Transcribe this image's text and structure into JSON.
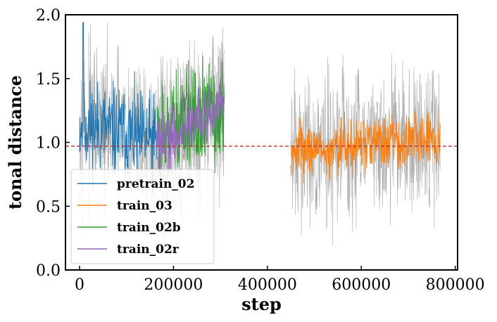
{
  "chart_data": {
    "type": "line",
    "title": "",
    "xlabel": "step",
    "ylabel": "tonal distance",
    "xlim": [
      -30000,
      805000
    ],
    "ylim": [
      0.0,
      2.0
    ],
    "xticks": [
      0,
      200000,
      400000,
      600000,
      800000
    ],
    "xtick_labels": [
      "0",
      "200000",
      "400000",
      "600000",
      "800000"
    ],
    "yticks": [
      0.0,
      0.5,
      1.0,
      1.5,
      2.0
    ],
    "ytick_labels": [
      "0.0",
      "0.5",
      "1.0",
      "1.5",
      "2.0"
    ],
    "grid": false,
    "legend_position": "lower-left",
    "reference_line": {
      "y": 0.97,
      "color": "#d62728",
      "style": "dashed"
    },
    "raw_noise_color": "#aaaaaa",
    "series": [
      {
        "name": "pretrain_02",
        "color": "#1f77b4",
        "x_range": [
          0,
          165000
        ],
        "mean": [
          1.15,
          1.0
        ],
        "noise": 0.12,
        "raw_noise": 0.2,
        "peak": {
          "x": 8000,
          "y": 1.94
        },
        "legend_order": 0
      },
      {
        "name": "train_03",
        "color": "#ff7f0e",
        "x_range": [
          450000,
          768000
        ],
        "mean": [
          0.93,
          1.05
        ],
        "noise": 0.07,
        "raw_noise": 0.2,
        "legend_order": 1
      },
      {
        "name": "train_02b",
        "color": "#2ca02c",
        "x_range": [
          165000,
          308000
        ],
        "mean": [
          1.05,
          1.28
        ],
        "noise": 0.13,
        "raw_noise": 0.2,
        "legend_order": 2
      },
      {
        "name": "train_02r",
        "color": "#9467bd",
        "x_range": [
          165000,
          308000
        ],
        "mean": [
          0.98,
          1.28
        ],
        "noise": 0.08,
        "raw_noise": 0.2,
        "legend_order": 3
      }
    ]
  }
}
